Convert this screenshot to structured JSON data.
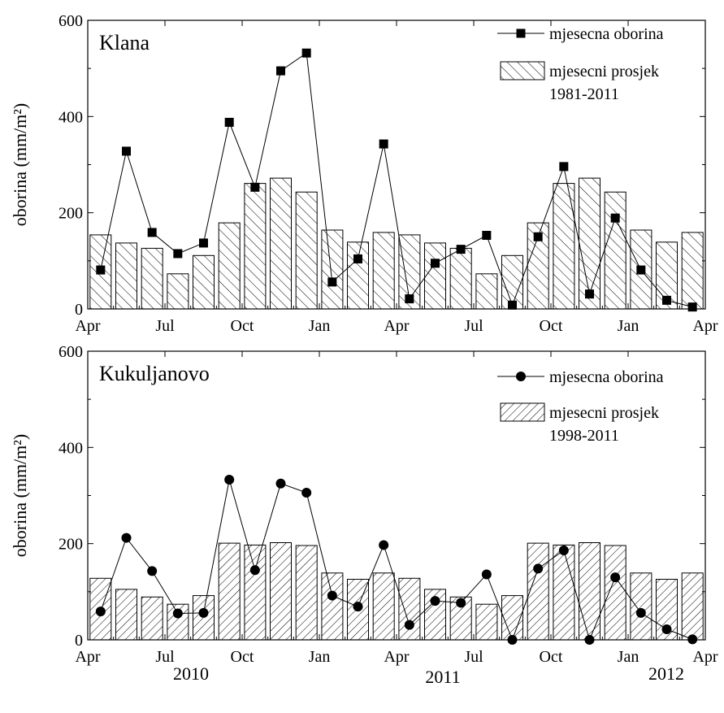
{
  "chart_data": [
    {
      "type": "bar",
      "title": "Klana",
      "ylabel": "oborina (mm/m²)",
      "ylim": [
        0,
        600
      ],
      "yticks": [
        0,
        200,
        400,
        600
      ],
      "xticks": [
        "Apr",
        "Jul",
        "Oct",
        "Jan",
        "Apr",
        "Jul",
        "Oct",
        "Jan",
        "Apr"
      ],
      "x": [
        "2010-04",
        "2010-05",
        "2010-06",
        "2010-07",
        "2010-08",
        "2010-09",
        "2010-10",
        "2010-11",
        "2010-12",
        "2011-01",
        "2011-02",
        "2011-03",
        "2011-04",
        "2011-05",
        "2011-06",
        "2011-07",
        "2011-08",
        "2011-09",
        "2011-10",
        "2011-11",
        "2011-12",
        "2012-01",
        "2012-02",
        "2012-03"
      ],
      "legend_position": "top-right",
      "hatch": "backslash",
      "marker": "square",
      "series": [
        {
          "name": "mjesecni prosjek 1981-2011",
          "kind": "bar",
          "values": [
            154,
            137,
            126,
            73,
            111,
            179,
            261,
            272,
            243,
            164,
            139,
            159,
            154,
            137,
            126,
            73,
            111,
            179,
            261,
            272,
            243,
            164,
            139,
            159
          ]
        },
        {
          "name": "mjesecna oborina",
          "kind": "line",
          "values": [
            81,
            328,
            159,
            115,
            137,
            388,
            253,
            495,
            532,
            56,
            104,
            343,
            21,
            95,
            124,
            153,
            8,
            150,
            296,
            31,
            189,
            81,
            18,
            4
          ]
        }
      ]
    },
    {
      "type": "bar",
      "title": "Kukuljanovo",
      "ylabel": "oborina (mm/m²)",
      "ylim": [
        0,
        600
      ],
      "yticks": [
        0,
        200,
        400,
        600
      ],
      "xticks": [
        "Apr",
        "Jul",
        "Oct",
        "Jan",
        "Apr",
        "Jul",
        "Oct",
        "Jan",
        "Apr"
      ],
      "x": [
        "2010-04",
        "2010-05",
        "2010-06",
        "2010-07",
        "2010-08",
        "2010-09",
        "2010-10",
        "2010-11",
        "2010-12",
        "2011-01",
        "2011-02",
        "2011-03",
        "2011-04",
        "2011-05",
        "2011-06",
        "2011-07",
        "2011-08",
        "2011-09",
        "2011-10",
        "2011-11",
        "2011-12",
        "2012-01",
        "2012-02",
        "2012-03"
      ],
      "legend_position": "top-right",
      "hatch": "slash",
      "marker": "circle",
      "series": [
        {
          "name": "mjesecni prosjek 1998-2011",
          "kind": "bar",
          "values": [
            128,
            105,
            89,
            74,
            92,
            201,
            197,
            202,
            196,
            139,
            126,
            139,
            128,
            105,
            89,
            74,
            92,
            201,
            197,
            202,
            196,
            139,
            126,
            139
          ]
        },
        {
          "name": "mjesecna oborina",
          "kind": "line",
          "values": [
            59,
            212,
            143,
            55,
            56,
            333,
            145,
            325,
            306,
            92,
            69,
            197,
            31,
            81,
            77,
            136,
            0,
            148,
            186,
            0,
            130,
            56,
            22,
            1
          ]
        }
      ]
    }
  ],
  "bottom_axis": {
    "years": [
      "2010",
      "2011",
      "2012"
    ]
  },
  "colors": {
    "ink": "#000000",
    "background": "#ffffff",
    "bar_fill": "#ffffff"
  }
}
